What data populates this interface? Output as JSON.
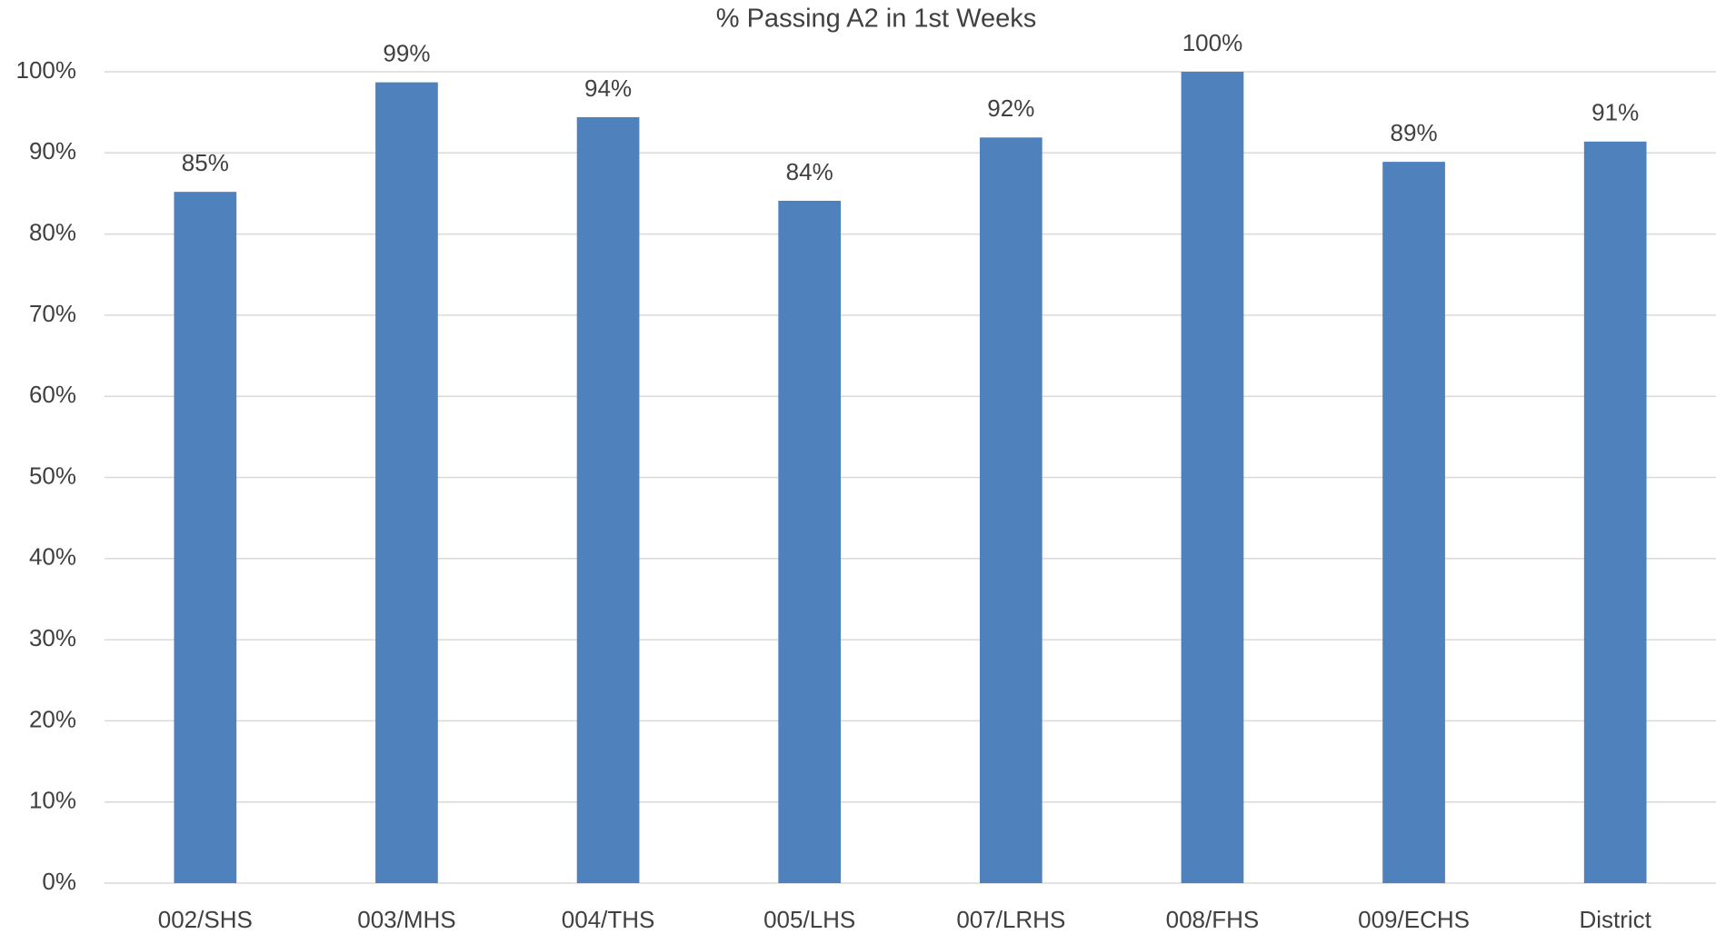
{
  "chart_data": {
    "type": "bar",
    "title": "% Passing A2 in 1st Weeks",
    "categories": [
      "002/SHS",
      "003/MHS",
      "004/THS",
      "005/LHS",
      "007/LRHS",
      "008/FHS",
      "009/ECHS",
      "District"
    ],
    "values": [
      85.2,
      98.7,
      94.4,
      84.1,
      91.9,
      100,
      88.9,
      91.4
    ],
    "value_labels": [
      "85%",
      "99%",
      "94%",
      "84%",
      "92%",
      "100%",
      "89%",
      "91%"
    ],
    "color": "#4f81bd",
    "ylim": [
      0,
      100
    ],
    "yticks": [
      {
        "value": 0,
        "label": "0%"
      },
      {
        "value": 10,
        "label": "10%"
      },
      {
        "value": 20,
        "label": "20%"
      },
      {
        "value": 30,
        "label": "30%"
      },
      {
        "value": 40,
        "label": "40%"
      },
      {
        "value": 50,
        "label": "50%"
      },
      {
        "value": 60,
        "label": "60%"
      },
      {
        "value": 70,
        "label": "70%"
      },
      {
        "value": 80,
        "label": "80%"
      },
      {
        "value": 90,
        "label": "90%"
      },
      {
        "value": 100,
        "label": "100%"
      }
    ],
    "grid": true
  }
}
